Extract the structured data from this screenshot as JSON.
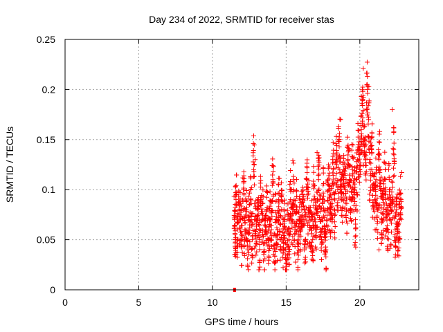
{
  "chart_data": {
    "type": "scatter",
    "title": "Day 234 of 2022, SRMTID for receiver stas",
    "xlabel": "GPS time / hours",
    "ylabel": "SRMTID / TECUs",
    "xlim": [
      0,
      24
    ],
    "ylim": [
      0,
      0.25
    ],
    "x_ticks": [
      0,
      5,
      10,
      15,
      20
    ],
    "x_tick_labels": [
      "0",
      "5",
      "10",
      "15",
      "20"
    ],
    "y_ticks": [
      0,
      0.05,
      0.1,
      0.15,
      0.2,
      0.25
    ],
    "y_tick_labels": [
      "0",
      "0.05",
      "0.1",
      "0.15",
      "0.2",
      "0.25"
    ],
    "grid": true,
    "marker": "plus",
    "color": "#ff0000",
    "series": [
      {
        "name": "SRMTID",
        "x": [
          11.5,
          11.55,
          11.6,
          11.7,
          11.8,
          11.9,
          12.0,
          12.1,
          12.2,
          12.3,
          12.4,
          12.5,
          12.6,
          12.7,
          12.8,
          12.9,
          13.0,
          13.1,
          13.2,
          13.3,
          13.4,
          13.5,
          13.6,
          13.7,
          13.8,
          13.9,
          14.0,
          14.1,
          14.2,
          14.3,
          14.4,
          14.5,
          14.6,
          14.7,
          14.8,
          14.9,
          15.0,
          15.1,
          15.2,
          15.3,
          15.4,
          15.5,
          15.6,
          15.7,
          15.8,
          15.9,
          16.0,
          16.1,
          16.2,
          16.3,
          16.4,
          16.5,
          16.6,
          16.7,
          16.8,
          16.9,
          17.0,
          17.1,
          17.2,
          17.3,
          17.4,
          17.5,
          17.6,
          17.7,
          17.8,
          17.9,
          18.0,
          18.1,
          18.2,
          18.3,
          18.4,
          18.5,
          18.6,
          18.7,
          18.8,
          18.9,
          19.0,
          19.1,
          19.2,
          19.3,
          19.4,
          19.5,
          19.6,
          19.7,
          19.8,
          19.9,
          20.0,
          20.1,
          20.2,
          20.3,
          20.4,
          20.5,
          20.6,
          20.7,
          20.8,
          20.9,
          21.0,
          21.1,
          21.2,
          21.3,
          21.4,
          21.5,
          21.6,
          21.7,
          21.8,
          21.9,
          22.0,
          22.1,
          22.2,
          22.3,
          22.4,
          22.5,
          22.6,
          22.7,
          22.8
        ],
        "y": [
          0.07,
          0.05,
          0.09,
          0.06,
          0.08,
          0.07,
          0.05,
          0.1,
          0.06,
          0.08,
          0.04,
          0.07,
          0.09,
          0.05,
          0.12,
          0.07,
          0.06,
          0.08,
          0.05,
          0.09,
          0.07,
          0.04,
          0.06,
          0.08,
          0.05,
          0.07,
          0.06,
          0.11,
          0.04,
          0.07,
          0.06,
          0.09,
          0.05,
          0.08,
          0.04,
          0.07,
          0.03,
          0.06,
          0.05,
          0.09,
          0.07,
          0.1,
          0.06,
          0.08,
          0.05,
          0.07,
          0.06,
          0.09,
          0.07,
          0.05,
          0.1,
          0.08,
          0.06,
          0.07,
          0.05,
          0.09,
          0.06,
          0.08,
          0.11,
          0.07,
          0.05,
          0.09,
          0.06,
          0.04,
          0.08,
          0.1,
          0.07,
          0.09,
          0.12,
          0.08,
          0.13,
          0.1,
          0.15,
          0.11,
          0.09,
          0.12,
          0.1,
          0.08,
          0.13,
          0.11,
          0.09,
          0.12,
          0.1,
          0.07,
          0.11,
          0.14,
          0.12,
          0.16,
          0.19,
          0.15,
          0.13,
          0.2,
          0.17,
          0.12,
          0.14,
          0.1,
          0.09,
          0.11,
          0.08,
          0.13,
          0.1,
          0.07,
          0.09,
          0.11,
          0.08,
          0.06,
          0.1,
          0.07,
          0.09,
          0.14,
          0.06,
          0.08,
          0.05,
          0.07,
          0.09
        ],
        "extra_points": [
          [
            11.5,
            0.0
          ],
          [
            20.5,
            0.205
          ],
          [
            20.2,
            0.198
          ],
          [
            22.2,
            0.18
          ],
          [
            20.1,
            0.193
          ],
          [
            22.3,
            0.157
          ],
          [
            18.7,
            0.17
          ],
          [
            17.1,
            0.137
          ],
          [
            14.1,
            0.124
          ],
          [
            12.9,
            0.13
          ],
          [
            15.2,
            0.025
          ],
          [
            14.3,
            0.028
          ],
          [
            17.4,
            0.03
          ],
          [
            21.3,
            0.04
          ],
          [
            22.4,
            0.044
          ],
          [
            21.9,
            0.04
          ]
        ]
      }
    ]
  }
}
